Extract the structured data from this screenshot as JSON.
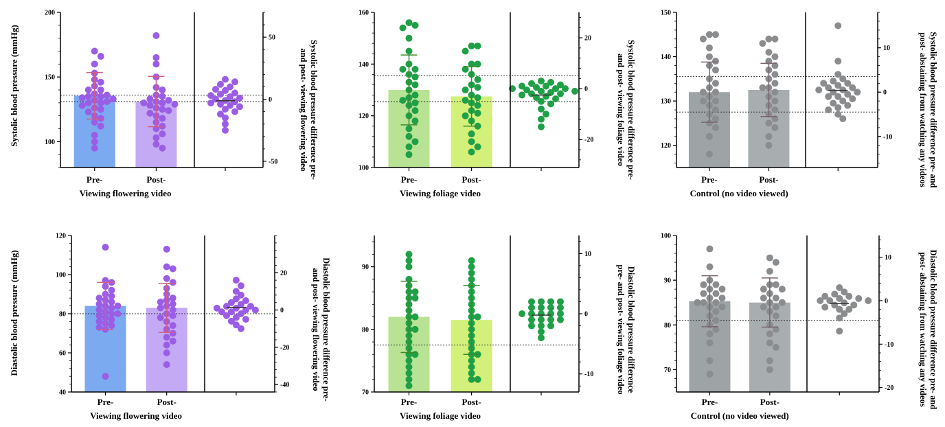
{
  "figure": {
    "row_labels": [
      "Systolic blood pressure (mmHg)",
      "Diastolic blood pressure (mmHg)"
    ]
  },
  "chart_data": [
    {
      "type": "bar",
      "categories": [
        "Pre-",
        "Post-"
      ],
      "xlabel": "Viewing flowering video",
      "ylabel": "Systolic blood pressure (mmHg)",
      "ylim": [
        80,
        200
      ],
      "yticks": [
        100,
        150,
        200
      ],
      "y2label": "Systolic blood pressure difference pre- and post- viewing flowering video",
      "y2lim": [
        -55,
        70
      ],
      "y2ticks": [
        -50,
        0,
        50
      ],
      "colors": {
        "pre": "#7baaf0",
        "post": "#c4aaf5",
        "dots": "#9b5de5",
        "whisker": "#d35c8a"
      },
      "means": [
        135.5,
        131
      ],
      "sd": [
        18,
        19.5
      ],
      "ref_lines": [
        131,
        136
      ],
      "points_pre": [
        170,
        166,
        160,
        153,
        148,
        146,
        143,
        140,
        140,
        137,
        136,
        135,
        135,
        134,
        133,
        132,
        131,
        130,
        130,
        128,
        126,
        125,
        123,
        120,
        118,
        115,
        112,
        105,
        100,
        95
      ],
      "points_post": [
        182,
        165,
        160,
        150,
        142,
        140,
        136,
        135,
        133,
        132,
        131,
        130,
        130,
        129,
        128,
        126,
        125,
        124,
        122,
        120,
        118,
        115,
        112,
        110,
        106,
        103,
        98,
        95
      ],
      "diffs": [
        16,
        14,
        12,
        10,
        8,
        7,
        5,
        4,
        3,
        2,
        1,
        0,
        -1,
        -2,
        -3,
        -4,
        -5,
        -6,
        -8,
        -10,
        -12,
        -15,
        -20,
        -25
      ],
      "diff_color": "#9b5de5"
    },
    {
      "type": "bar",
      "categories": [
        "Pre-",
        "Post-"
      ],
      "xlabel": "Viewing foliage video",
      "ylabel": "",
      "ylim": [
        100,
        160
      ],
      "yticks": [
        100,
        120,
        140,
        160
      ],
      "y2label": "Systolic blood pressure difference pre- and post- viewing foliage video",
      "y2lim": [
        -31,
        30
      ],
      "y2ticks": [
        -20,
        0,
        20
      ],
      "colors": {
        "pre": "#b8e394",
        "post": "#d2f07a",
        "dots": "#1fa046",
        "whisker": "#3a8a2a"
      },
      "means": [
        130,
        127.5
      ],
      "sd": [
        13.5,
        11.5
      ],
      "ref_lines": [
        125.5,
        135.5
      ],
      "points_pre": [
        156,
        155,
        154,
        150,
        145,
        140,
        138,
        138,
        136,
        135,
        133,
        132,
        130,
        128,
        127,
        126,
        125,
        124,
        122,
        120,
        118,
        115,
        112,
        110,
        108,
        105
      ],
      "points_post": [
        147,
        147,
        145,
        140,
        140,
        138,
        136,
        134,
        132,
        131,
        130,
        128,
        127,
        126,
        125,
        124,
        122,
        121,
        120,
        118,
        116,
        113,
        110,
        108,
        106
      ],
      "diffs": [
        3,
        2.5,
        2,
        1.5,
        1,
        1,
        0.5,
        0,
        0,
        0,
        -0.5,
        -1,
        -1,
        -1.5,
        -2,
        -2,
        -2.5,
        -3,
        -3.5,
        -4,
        -5,
        -6,
        -8,
        -10,
        -12,
        -15
      ],
      "diff_color": "#1fa046"
    },
    {
      "type": "bar",
      "categories": [
        "Pre-",
        "Post-"
      ],
      "xlabel": "Control (no video viewed)",
      "ylabel": "",
      "ylim": [
        115,
        150
      ],
      "yticks": [
        120,
        130,
        140,
        150
      ],
      "y2label": "Systolic blood pressure difference pre- and post- abstaining from watching any videos",
      "y2lim": [
        -17,
        18
      ],
      "y2ticks": [
        -10,
        0,
        10
      ],
      "colors": {
        "pre": "#9ea3a6",
        "post": "#a8adb0",
        "dots": "#8a8c8e",
        "whisker": "#7a6670"
      },
      "means": [
        132,
        132.5
      ],
      "sd": [
        6.8,
        6
      ],
      "ref_lines": [
        127.5,
        135.5
      ],
      "points_pre": [
        145,
        145,
        144,
        142,
        140,
        139,
        138,
        137,
        135,
        134,
        133,
        132,
        132,
        131,
        130,
        130,
        129,
        128,
        127,
        126,
        125,
        124,
        122,
        118
      ],
      "points_post": [
        144,
        144,
        143,
        141,
        140,
        139,
        138,
        137,
        136,
        135,
        134,
        133,
        133,
        132,
        131,
        130,
        129,
        128,
        127,
        126,
        125,
        124,
        122,
        120
      ],
      "diffs": [
        15,
        7,
        4,
        3,
        2.5,
        2,
        2,
        1.5,
        1,
        1,
        0.5,
        0.5,
        0,
        0,
        -0.5,
        -1,
        -1,
        -1.5,
        -2,
        -2.5,
        -3,
        -3.5,
        -4,
        -5,
        -6
      ],
      "diff_color": "#8a8c8e"
    },
    {
      "type": "bar",
      "categories": [
        "Pre-",
        "Post-"
      ],
      "xlabel": "Viewing flowering video",
      "ylabel": "Diastolic blood pressure (mmHg)",
      "ylim": [
        40,
        120
      ],
      "yticks": [
        40,
        60,
        80,
        100,
        120
      ],
      "y2label": "Diastolic blood pressure difference pre- and post- viewing flowering video",
      "y2lim": [
        -44,
        40
      ],
      "y2ticks": [
        -40,
        -20,
        0,
        20
      ],
      "colors": {
        "pre": "#7baaf0",
        "post": "#c4aaf5",
        "dots": "#9b5de5",
        "whisker": "#d35c8a"
      },
      "means": [
        84,
        83
      ],
      "sd": [
        12,
        12.5
      ],
      "ref_lines": [
        80
      ],
      "points_pre": [
        114,
        97,
        96,
        94,
        92,
        90,
        89,
        88,
        87,
        86,
        85,
        84,
        84,
        83,
        82,
        81,
        80,
        80,
        79,
        78,
        77,
        76,
        75,
        74,
        73,
        72,
        48
      ],
      "points_post": [
        113,
        104,
        103,
        98,
        96,
        93,
        90,
        88,
        87,
        86,
        85,
        84,
        83,
        82,
        80,
        79,
        78,
        76,
        74,
        72,
        70,
        68,
        66,
        64,
        60,
        54
      ],
      "diffs": [
        16,
        13,
        10,
        8,
        6,
        5,
        4,
        3,
        2,
        2,
        1,
        1,
        0,
        0,
        -1,
        -1,
        -2,
        -3,
        -4,
        -5,
        -6,
        -8,
        -10
      ],
      "diff_color": "#9b5de5"
    },
    {
      "type": "bar",
      "categories": [
        "Pre-",
        "Post-"
      ],
      "xlabel": "Viewing foliage video",
      "ylabel": "",
      "ylim": [
        70,
        95
      ],
      "yticks": [
        70,
        80,
        90
      ],
      "y2label": "Diastolic blood pressure difference pre- and post- viewing foliage video",
      "y2lim": [
        -13,
        13
      ],
      "y2ticks": [
        -10,
        0,
        10
      ],
      "colors": {
        "pre": "#b8e394",
        "post": "#d2f07a",
        "dots": "#1fa046",
        "whisker": "#3a8a2a"
      },
      "means": [
        82,
        81.5
      ],
      "sd": [
        5.7,
        5.5
      ],
      "ref_lines": [
        77.5
      ],
      "points_pre": [
        92,
        91,
        90,
        88,
        87,
        86,
        86,
        85,
        85,
        84,
        83,
        82,
        82,
        81,
        80,
        80,
        79,
        78,
        77,
        76,
        76,
        75,
        74,
        73,
        72,
        71
      ],
      "points_post": [
        91,
        90,
        89,
        88,
        87,
        86,
        85,
        84,
        83,
        82,
        82,
        81,
        80,
        79,
        78,
        77,
        76,
        76,
        75,
        74,
        73,
        72,
        72
      ],
      "diffs": [
        2,
        2,
        2,
        2,
        1,
        1,
        1,
        1,
        0,
        0,
        0,
        0,
        0,
        -1,
        -1,
        -1,
        -1,
        -2,
        -2,
        -2,
        -3,
        -4
      ],
      "diff_color": "#1fa046"
    },
    {
      "type": "bar",
      "categories": [
        "Pre-",
        "Post-"
      ],
      "xlabel": "Control (no video viewed)",
      "ylabel": "",
      "ylim": [
        65,
        100
      ],
      "yticks": [
        70,
        80,
        90,
        100
      ],
      "y2label": "Diastolic blood pressure difference pre- and post- abstaining from watching any videos",
      "y2lim": [
        -21,
        15
      ],
      "y2ticks": [
        -20,
        -10,
        0,
        10
      ],
      "colors": {
        "pre": "#9ea3a6",
        "post": "#a8adb0",
        "dots": "#8a8c8e",
        "whisker": "#7a6670"
      },
      "means": [
        85.3,
        85
      ],
      "sd": [
        5.7,
        5.5
      ],
      "ref_lines": [
        81
      ],
      "points_pre": [
        97,
        93,
        90,
        89,
        89,
        88,
        88,
        87,
        87,
        86,
        86,
        85,
        85,
        85,
        84,
        84,
        83,
        82,
        81,
        80,
        79,
        78,
        76,
        72,
        69
      ],
      "points_post": [
        95,
        94,
        92,
        89,
        89,
        88,
        88,
        87,
        86,
        86,
        85,
        85,
        84,
        84,
        83,
        82,
        80,
        79,
        78,
        76,
        75,
        72,
        70
      ],
      "diffs": [
        3,
        2,
        1.5,
        1,
        1,
        0.5,
        0.5,
        0,
        0,
        0,
        -0.5,
        -1,
        -1,
        -1.5,
        -2,
        -2,
        -3,
        -4,
        -7
      ],
      "diff_color": "#8a8c8e"
    }
  ]
}
